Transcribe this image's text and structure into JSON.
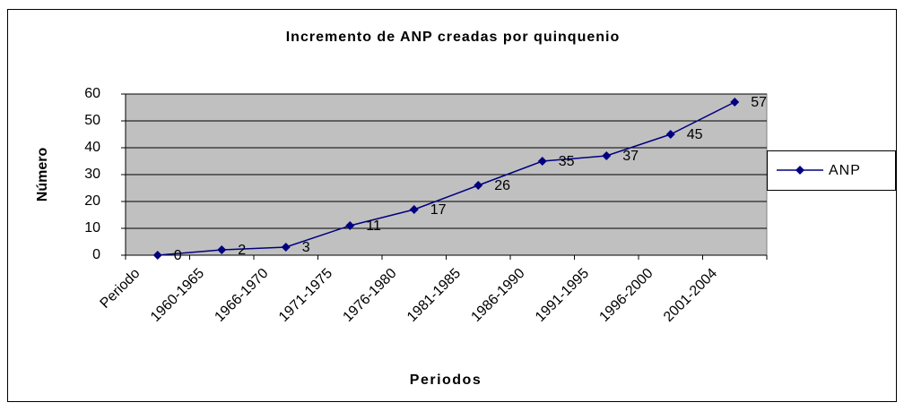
{
  "chart_data": {
    "type": "line",
    "title": "Incremento de ANP creadas por quinquenio",
    "x_label": "Periodos",
    "y_label": "Número",
    "categories": [
      "Periodo",
      "1960-1965",
      "1966-1970",
      "1971-1975",
      "1976-1980",
      "1981-1985",
      "1986-1990",
      "1991-1995",
      "1996-2000",
      "2001-2004"
    ],
    "series": [
      {
        "name": "ANP",
        "color": "#000080",
        "values": [
          0,
          2,
          3,
          11,
          17,
          26,
          35,
          37,
          45,
          57
        ]
      }
    ],
    "ylim": [
      0,
      60
    ],
    "yticks": [
      0,
      10,
      20,
      30,
      40,
      50,
      60
    ],
    "grid": true,
    "legend": "right"
  }
}
